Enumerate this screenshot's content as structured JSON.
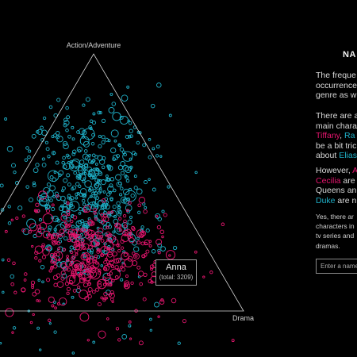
{
  "vertices": {
    "top": "Action/Adventure",
    "right": "Drama"
  },
  "tooltip": {
    "name": "Anna",
    "total": "(total: 3209)"
  },
  "panel": {
    "title": "NA",
    "para1": [
      "The freque",
      "occurrence",
      "genre as w"
    ],
    "para2": {
      "line1": "There are a",
      "line2": "main chara",
      "line3_a": "Tiffany",
      "line3_b": ", ",
      "line3_c": "Ra",
      "line4": "be a bit tric",
      "line5_a": "about ",
      "line5_b": "Elias"
    },
    "para3": {
      "line1_a": "However, ",
      "line1_b": "A",
      "line2_a": "Cecilia",
      "line2_b": " are",
      "line3": "Queens an",
      "line4_a": "Duke",
      "line4_b": " are n"
    },
    "para4": [
      "Yes, there ar",
      "characters in",
      "tv series and",
      "dramas."
    ],
    "search_placeholder": "Enter a name..."
  },
  "colors": {
    "background": "#000000",
    "female": "#e6156e",
    "male": "#1fb0c8",
    "triangle": "#d8d8d8"
  }
}
